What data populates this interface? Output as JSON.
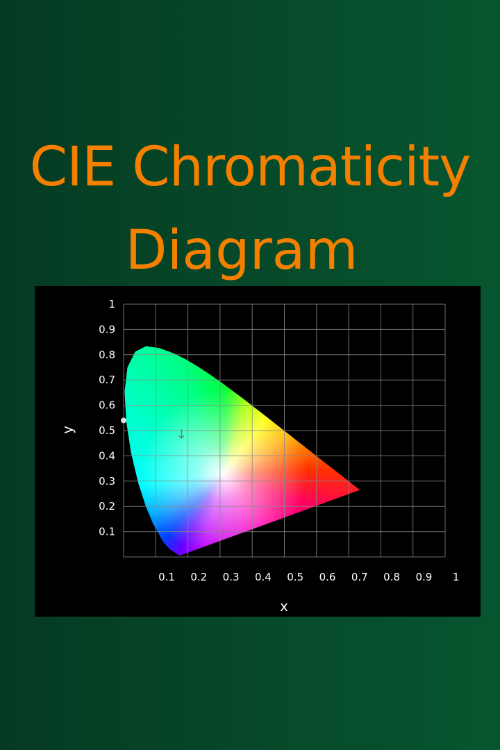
{
  "title": {
    "line1": "CIE Chromaticity",
    "line2": "Diagram"
  },
  "colors": {
    "title": "#f58000",
    "panel": "#000000",
    "grid": "#8a8a8a",
    "background": "#064a2a"
  },
  "chart_data": {
    "type": "chromaticity",
    "xlabel": "x",
    "ylabel": "y",
    "xlim": [
      0,
      1
    ],
    "ylim": [
      0,
      1
    ],
    "grid": true,
    "x_ticks": [
      "0.1",
      "0.2",
      "0.3",
      "0.4",
      "0.5",
      "0.6",
      "0.7",
      "0.8",
      "0.9",
      "1"
    ],
    "y_ticks": [
      "0.1",
      "0.2",
      "0.3",
      "0.4",
      "0.5",
      "0.6",
      "0.7",
      "0.8",
      "0.9",
      "1"
    ],
    "white_point": [
      0.31,
      0.33
    ],
    "spectral_locus": [
      [
        0.174,
        0.005
      ],
      [
        0.144,
        0.03
      ],
      [
        0.124,
        0.058
      ],
      [
        0.091,
        0.133
      ],
      [
        0.069,
        0.2
      ],
      [
        0.045,
        0.295
      ],
      [
        0.023,
        0.413
      ],
      [
        0.008,
        0.538
      ],
      [
        0.003,
        0.655
      ],
      [
        0.012,
        0.75
      ],
      [
        0.036,
        0.812
      ],
      [
        0.07,
        0.834
      ],
      [
        0.112,
        0.826
      ],
      [
        0.155,
        0.806
      ],
      [
        0.193,
        0.782
      ],
      [
        0.23,
        0.754
      ],
      [
        0.266,
        0.724
      ],
      [
        0.302,
        0.692
      ],
      [
        0.373,
        0.625
      ],
      [
        0.444,
        0.555
      ],
      [
        0.512,
        0.487
      ],
      [
        0.575,
        0.424
      ],
      [
        0.627,
        0.372
      ],
      [
        0.666,
        0.334
      ],
      [
        0.692,
        0.308
      ],
      [
        0.735,
        0.265
      ]
    ],
    "marker_point": [
      0.0,
      0.54
    ],
    "cursor_symbol": "↓",
    "cursor_point": [
      0.18,
      0.49
    ]
  }
}
